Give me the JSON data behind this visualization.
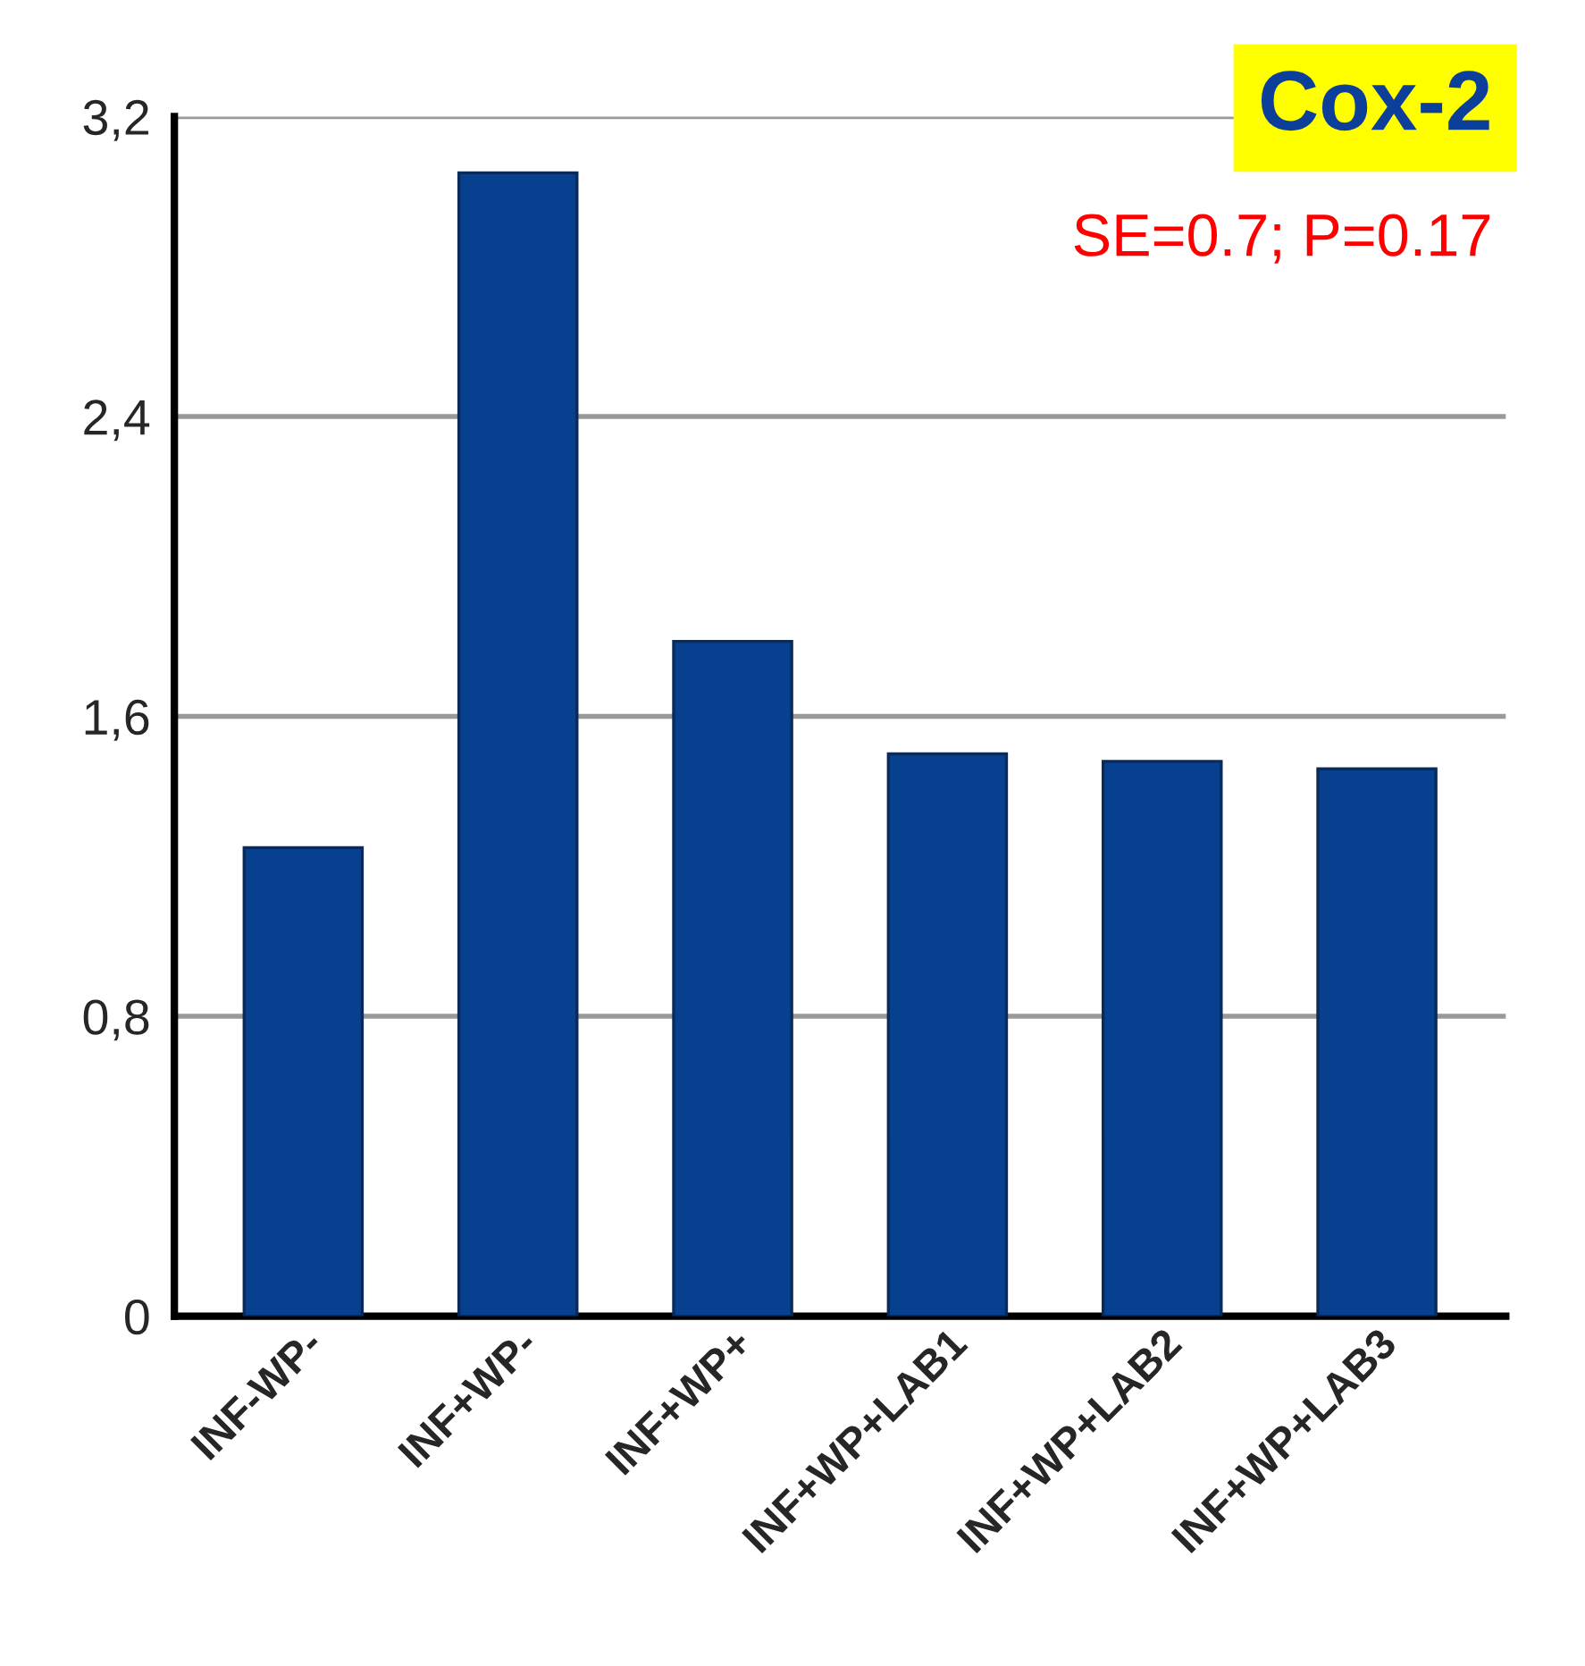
{
  "chart_data": {
    "type": "bar",
    "title": "Cox-2",
    "categories": [
      "INF-WP-",
      "INF+WP-",
      "INF+WP+",
      "INF+WP+LAB1",
      "INF+WP+LAB2",
      "INF+WP+LAB3"
    ],
    "values": [
      1.25,
      3.05,
      1.8,
      1.5,
      1.48,
      1.46
    ],
    "color": "#07408f",
    "ylim": [
      0,
      3.2
    ],
    "yticks": [
      0,
      {
        "value": 0.8,
        "label": "0,8"
      },
      {
        "value": 1.6,
        "label": "1,6"
      },
      {
        "value": 2.4,
        "label": "2,4"
      },
      {
        "value": 3.2,
        "label": "3,2"
      }
    ],
    "grid": "y",
    "annotations": [
      "SE=0.7; P=0.17"
    ]
  }
}
